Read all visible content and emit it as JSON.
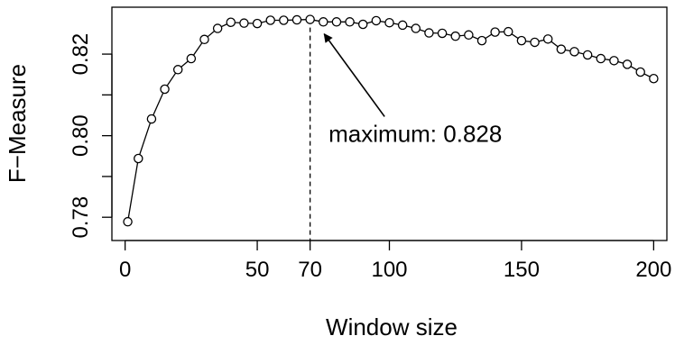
{
  "chart_data": {
    "type": "line",
    "title": "",
    "xlabel": "Window size",
    "ylabel": "F−Measure",
    "xlim": [
      -5,
      205
    ],
    "ylim": [
      0.7743,
      0.8315
    ],
    "x_ticks": [
      {
        "value": 0,
        "label": "0"
      },
      {
        "value": 50,
        "label": "50"
      },
      {
        "value": 70,
        "label": "70"
      },
      {
        "value": 100,
        "label": "100"
      },
      {
        "value": 150,
        "label": "150"
      },
      {
        "value": 200,
        "label": "200"
      }
    ],
    "y_ticks": [
      {
        "value": 0.78,
        "label": "0.78"
      },
      {
        "value": 0.8,
        "label": "0.80"
      },
      {
        "value": 0.82,
        "label": "0.82"
      }
    ],
    "grid": false,
    "marker": "open-circle",
    "x": [
      1,
      5,
      10,
      15,
      20,
      25,
      30,
      35,
      40,
      45,
      50,
      55,
      60,
      65,
      70,
      75,
      80,
      85,
      90,
      95,
      100,
      105,
      110,
      115,
      120,
      125,
      130,
      135,
      140,
      145,
      150,
      155,
      160,
      165,
      170,
      175,
      180,
      185,
      190,
      195,
      200
    ],
    "y": [
      0.7789,
      0.7944,
      0.8041,
      0.8114,
      0.8162,
      0.8189,
      0.8236,
      0.8263,
      0.8278,
      0.8276,
      0.8275,
      0.8283,
      0.8283,
      0.8284,
      0.8285,
      0.8279,
      0.8279,
      0.8279,
      0.8273,
      0.8282,
      0.8277,
      0.8271,
      0.8263,
      0.8252,
      0.8251,
      0.8244,
      0.8247,
      0.8233,
      0.8254,
      0.8255,
      0.8233,
      0.8229,
      0.8237,
      0.8212,
      0.8206,
      0.8198,
      0.8189,
      0.8184,
      0.8175,
      0.8156,
      0.814
    ],
    "reference_line": {
      "x": 70,
      "style": "dashed"
    },
    "annotation": {
      "text": "maximum: 0.828",
      "target_x": 75,
      "target_y": 0.8276,
      "text_x": 77,
      "text_y": 0.7985
    }
  }
}
